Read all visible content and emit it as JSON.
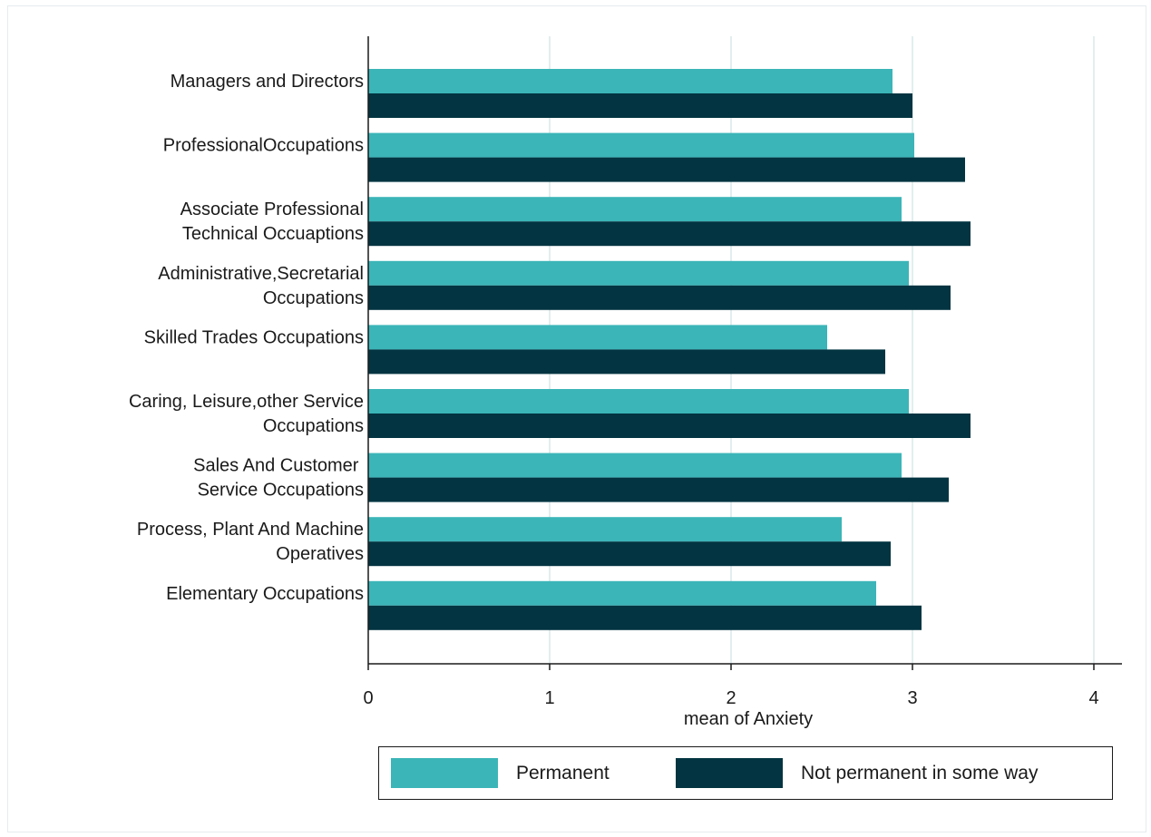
{
  "chart_data": {
    "type": "bar",
    "orientation": "horizontal",
    "categories": [
      [
        "Managers and  Directors"
      ],
      [
        "ProfessionalOccupations"
      ],
      [
        "Associate Professional",
        "Technical Occuaptions"
      ],
      [
        "Administrative,Secretarial",
        "Occupations"
      ],
      [
        "Skilled Trades Occupations"
      ],
      [
        "Caring, Leisure,other Service",
        "Occupations"
      ],
      [
        "Sales And Customer ",
        "Service Occupations"
      ],
      [
        "Process, Plant And Machine",
        "Operatives"
      ],
      [
        "Elementary Occupations"
      ]
    ],
    "series": [
      {
        "name": "Permanent",
        "color": "#3bb5b8",
        "values": [
          2.89,
          3.01,
          2.94,
          2.98,
          2.53,
          2.98,
          2.94,
          2.61,
          2.8
        ]
      },
      {
        "name": "Not permanent in some way",
        "color": "#023441",
        "values": [
          3.0,
          3.29,
          3.32,
          3.21,
          2.85,
          3.32,
          3.2,
          2.88,
          3.05
        ]
      }
    ],
    "xlabel": "mean of Anxiety",
    "ylabel": "",
    "xlim": [
      0,
      4.15
    ],
    "xticks": [
      "0",
      "1",
      "2",
      "3",
      "4"
    ],
    "grid": true,
    "legend_position": "bottom"
  }
}
